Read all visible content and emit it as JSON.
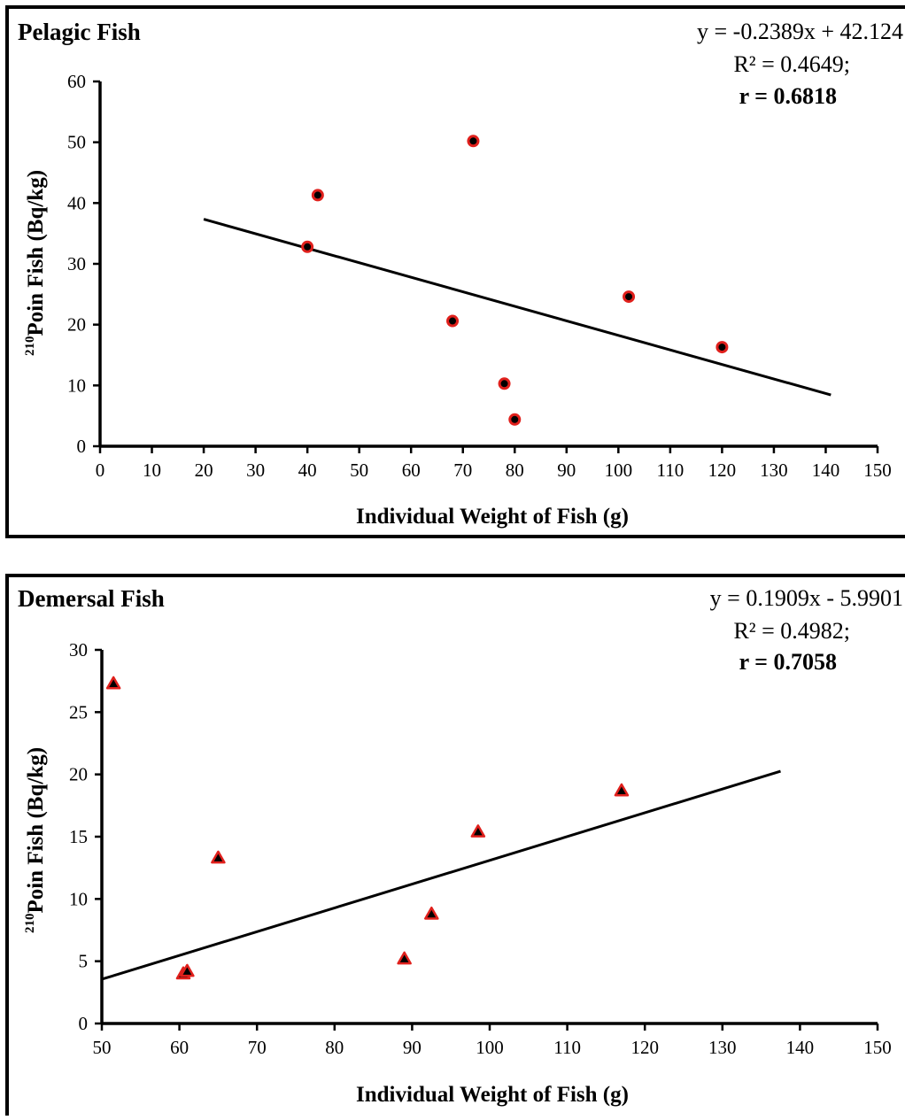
{
  "chart_data": [
    {
      "type": "scatter",
      "title": "Pelagic Fish",
      "equation": "y = -0.2389x  + 42.124",
      "r2_text": "R² = 0.4649;",
      "r_text": "r = 0.6818",
      "xlabel": "Individual Weight of Fish (g)",
      "ylabel_sup": "210",
      "ylabel": "Poin Fish (Bq/kg)",
      "xlim": [
        0,
        150
      ],
      "ylim": [
        0,
        60
      ],
      "xticks": [
        0,
        10,
        20,
        30,
        40,
        50,
        60,
        70,
        80,
        90,
        100,
        110,
        120,
        130,
        140,
        150
      ],
      "yticks": [
        0,
        10,
        20,
        30,
        40,
        50,
        60
      ],
      "marker": "circle",
      "marker_fill": "#000000",
      "marker_edge": "#e0201c",
      "points": [
        {
          "x": 40,
          "y": 32.8
        },
        {
          "x": 42,
          "y": 41.3
        },
        {
          "x": 68,
          "y": 20.6
        },
        {
          "x": 72,
          "y": 50.2
        },
        {
          "x": 78,
          "y": 10.3
        },
        {
          "x": 80,
          "y": 4.4
        },
        {
          "x": 102,
          "y": 24.6
        },
        {
          "x": 120,
          "y": 16.3
        }
      ],
      "trendline": {
        "slope": -0.2389,
        "intercept": 42.124,
        "x_range": [
          20,
          141
        ]
      },
      "grid": false
    },
    {
      "type": "scatter",
      "title": "Demersal Fish",
      "equation": "y = 0.1909x  - 5.9901",
      "r2_text": "R² = 0.4982;",
      "r_text": "r = 0.7058",
      "xlabel": "Individual Weight of Fish (g)",
      "ylabel_sup": "210",
      "ylabel": "Poin Fish (Bq/kg)",
      "xlim": [
        50,
        150
      ],
      "ylim": [
        0,
        30
      ],
      "xticks": [
        50,
        60,
        70,
        80,
        90,
        100,
        110,
        120,
        130,
        140,
        150
      ],
      "yticks": [
        0,
        5,
        10,
        15,
        20,
        25,
        30
      ],
      "marker": "triangle",
      "marker_fill": "#000000",
      "marker_edge": "#e0201c",
      "points": [
        {
          "x": 51.5,
          "y": 27.3
        },
        {
          "x": 60.5,
          "y": 4.0
        },
        {
          "x": 61,
          "y": 4.2
        },
        {
          "x": 65,
          "y": 13.3
        },
        {
          "x": 89,
          "y": 5.2
        },
        {
          "x": 92.5,
          "y": 8.8
        },
        {
          "x": 98.5,
          "y": 15.4
        },
        {
          "x": 117,
          "y": 18.7
        }
      ],
      "trendline": {
        "slope": 0.1909,
        "intercept": -5.9901,
        "x_range": [
          50,
          137.5
        ]
      },
      "grid": false
    }
  ]
}
